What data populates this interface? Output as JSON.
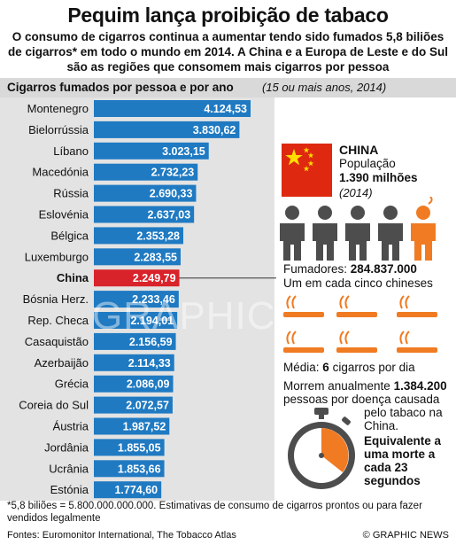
{
  "title": "Pequim lança proibição de tabaco",
  "subtitle": "O consumo de cigarros continua a aumentar tendo sido fumados 5,8 biliões de cigarros* em todo o mundo em 2014. A China e a Europa de Leste e do Sul são as regiões que consomem mais cigarros por pessoa",
  "chart_header": "Cigarros fumados por pessoa e por ano",
  "chart_header_note": "(15 ou mais anos, 2014)",
  "colors": {
    "bar": "#1f7ac2",
    "highlight": "#d9232a",
    "band": "#d9d9d9",
    "plot_bg": "#e3e3e3",
    "accent": "#f07b22"
  },
  "chart_data": {
    "type": "bar",
    "orientation": "horizontal",
    "categories": [
      "Montenegro",
      "Bielorrússia",
      "Líbano",
      "Macedónia",
      "Rússia",
      "Eslovénia",
      "Bélgica",
      "Luxemburgo",
      "China",
      "Bósnia Herz.",
      "Rep. Checa",
      "Casaquistão",
      "Azerbaijão",
      "Grécia",
      "Coreia do Sul",
      "Áustria",
      "Jordânia",
      "Ucrânia",
      "Estónia"
    ],
    "values": [
      4124.53,
      3830.62,
      3023.15,
      2732.23,
      2690.33,
      2637.03,
      2353.28,
      2283.55,
      2249.79,
      2233.46,
      2194.01,
      2156.59,
      2114.33,
      2086.09,
      2072.57,
      1987.52,
      1855.05,
      1853.66,
      1774.6
    ],
    "labels": [
      "4.124,53",
      "3.830,62",
      "3.023,15",
      "2.732,23",
      "2.690,33",
      "2.637,03",
      "2.353,28",
      "2.283,55",
      "2.249,79",
      "2.233,46",
      "2.194,01",
      "2.156,59",
      "2.114,33",
      "2.086,09",
      "2.072,57",
      "1.987,52",
      "1.855,05",
      "1.853,66",
      "1.774,60"
    ],
    "highlight": "China",
    "xlim": [
      0,
      4124.53
    ],
    "grid": false
  },
  "china": {
    "label": "CHINA",
    "population_label": "População",
    "population_value": "1.390 milhões",
    "population_year": "(2014)",
    "smokers_label": "Fumadores:",
    "smokers_value": "284.837.000",
    "ratio_text": "Um em cada cinco chineses",
    "avg_prefix": "Média:",
    "avg_value": "6",
    "avg_suffix": "cigarros por dia",
    "deaths_prefix": "Morrem anualmente",
    "deaths_value": "1.384.200",
    "deaths_text": "pessoas por doença causada",
    "deaths_text2": "pelo tabaco na China.",
    "equivalent": "Equivalente a uma morte a cada 23 segundos"
  },
  "footnote": "*5,8 biliões = 5.800.000.000.000. Estimativas de consumo de cigarros prontos ou para fazer vendidos legalmente",
  "sources": "Fontes: Euromonitor International, The Tobacco Atlas",
  "credit": "© GRAPHIC NEWS",
  "watermark": "GRAPHIC NEWS"
}
